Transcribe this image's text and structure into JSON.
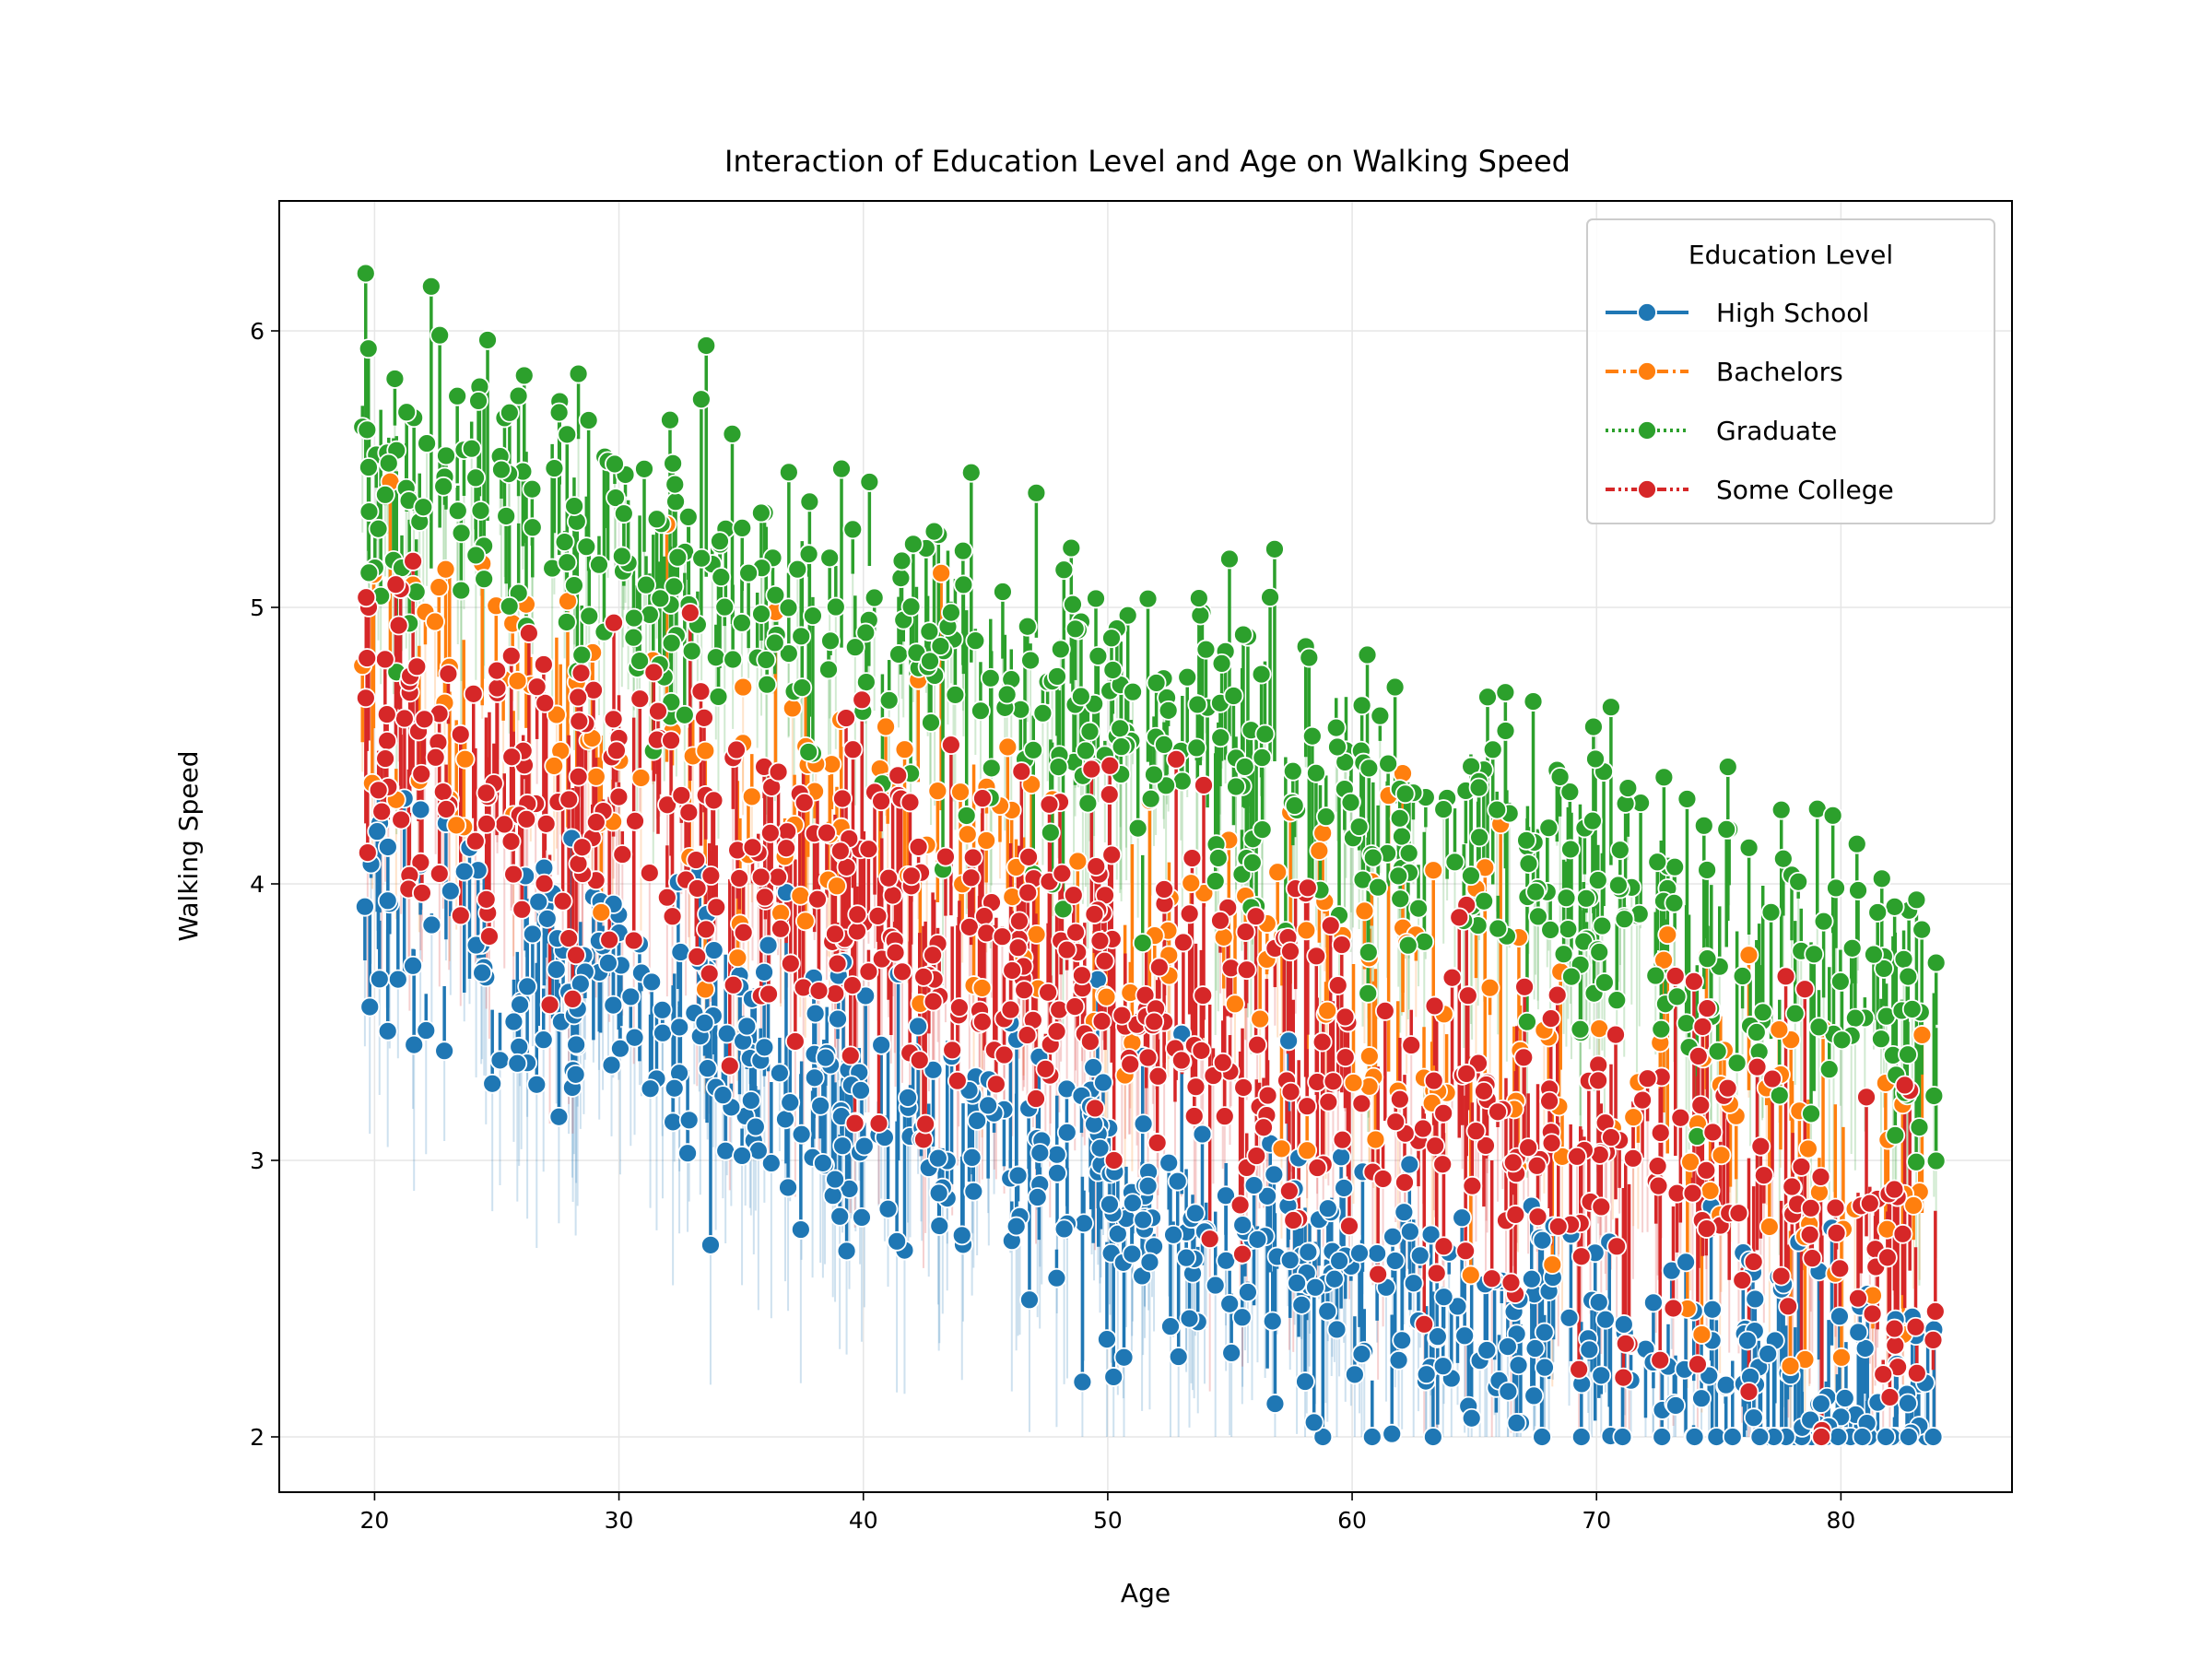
{
  "chart_data": {
    "type": "line",
    "title": "Interaction of Education Level and Age on Walking Speed",
    "xlabel": "Age",
    "ylabel": "Walking Speed",
    "xlim": [
      16.1,
      87.0
    ],
    "ylim": [
      1.8,
      6.47
    ],
    "xticks": [
      20,
      30,
      40,
      50,
      60,
      70,
      80
    ],
    "yticks": [
      2,
      3,
      4,
      5,
      6
    ],
    "grid": true,
    "legend": {
      "title": "Education Level",
      "placement": "top-right"
    },
    "x_range_observed": [
      19.3,
      83.9
    ],
    "series": [
      {
        "name": "High School",
        "color": "#1f77b4",
        "linestyle": "solid",
        "marker": "circle",
        "trend_x": [
          20,
          30,
          40,
          50,
          60,
          70,
          80
        ],
        "trend_y": [
          3.9,
          3.55,
          3.2,
          2.9,
          2.55,
          2.3,
          2.1
        ],
        "spread": 0.28,
        "floor": 2.0
      },
      {
        "name": "Bachelors",
        "color": "#ff7f0e",
        "linestyle": "dashdot",
        "marker": "circle",
        "trend_x": [
          20,
          30,
          40,
          50,
          60,
          70,
          80
        ],
        "trend_y": [
          4.8,
          4.55,
          4.25,
          3.95,
          3.65,
          3.3,
          2.95
        ],
        "spread": 0.35,
        "floor": 2.0
      },
      {
        "name": "Graduate",
        "color": "#2ca02c",
        "linestyle": "dotted",
        "marker": "circle",
        "trend_x": [
          20,
          30,
          40,
          50,
          60,
          70,
          80
        ],
        "trend_y": [
          5.5,
          5.2,
          4.95,
          4.6,
          4.3,
          4.0,
          3.65
        ],
        "spread": 0.3,
        "floor": 2.0
      },
      {
        "name": "Some College",
        "color": "#d62728",
        "linestyle": "dashdotted",
        "marker": "circle",
        "trend_x": [
          20,
          30,
          40,
          50,
          60,
          70,
          80
        ],
        "trend_y": [
          4.5,
          4.3,
          3.95,
          3.6,
          3.3,
          3.0,
          2.7
        ],
        "spread": 0.35,
        "floor": 2.0
      }
    ]
  }
}
